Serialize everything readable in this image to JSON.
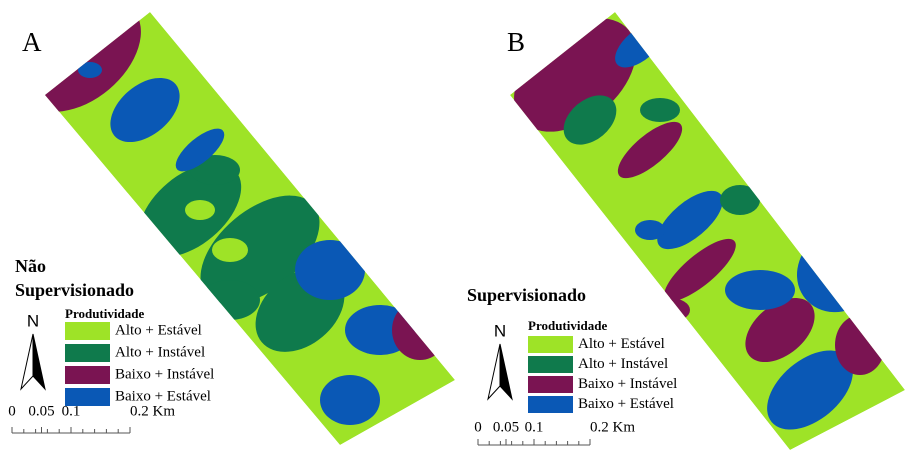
{
  "panels": [
    {
      "label": "A",
      "title": [
        "Não",
        "Supervisionado"
      ],
      "north": "N",
      "legend_title": "Produtividade",
      "legend": [
        {
          "label": "Alto + Estável",
          "color": "#9ee327"
        },
        {
          "label": "Alto + Instável",
          "color": "#0f7a4c"
        },
        {
          "label": "Baixo + Instável",
          "color": "#7a1452"
        },
        {
          "label": "Baixo + Estável",
          "color": "#0a58b5"
        }
      ],
      "scale_ticks": [
        0,
        0.05,
        0.1,
        {
          "value": 0.2,
          "label": "0.2 Km"
        }
      ]
    },
    {
      "label": "B",
      "title": [
        "Supervisionado"
      ],
      "north": "N",
      "legend_title": "Produtividade",
      "legend": [
        {
          "label": "Alto + Estável",
          "color": "#9ee327"
        },
        {
          "label": "Alto + Instável",
          "color": "#0f7a4c"
        },
        {
          "label": "Baixo + Instável",
          "color": "#7a1452"
        },
        {
          "label": "Baixo + Estável",
          "color": "#0a58b5"
        }
      ],
      "scale_ticks": [
        0,
        0.05,
        0.1,
        {
          "value": 0.2,
          "label": "0.2 Km"
        }
      ]
    }
  ]
}
